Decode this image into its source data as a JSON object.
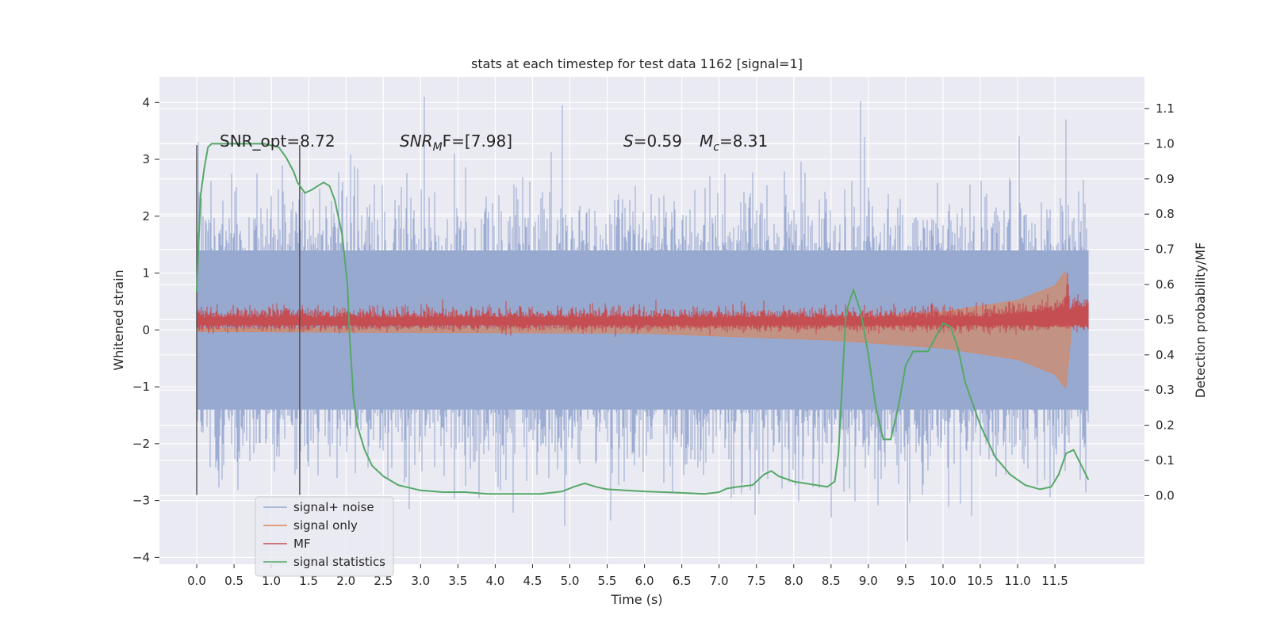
{
  "chart_data": {
    "type": "line",
    "title": "stats at each timestep for test data 1162 [signal=1]",
    "xlabel": "Time (s)",
    "ylabel_left": "Whitened strain",
    "ylabel_right": "Detection probability/MF",
    "xlim": [
      -0.5,
      12.7
    ],
    "ylim_left": [
      -4.12,
      4.45
    ],
    "ylim_right": [
      -0.195,
      1.19
    ],
    "x_ticks": [
      "0.0",
      "0.5",
      "1.0",
      "1.5",
      "2.0",
      "2.5",
      "3.0",
      "3.5",
      "4.0",
      "4.5",
      "5.0",
      "5.5",
      "6.0",
      "6.5",
      "7.0",
      "7.5",
      "8.0",
      "8.5",
      "9.0",
      "9.5",
      "10.0",
      "10.5",
      "11.0",
      "11.5"
    ],
    "y_ticks_left": [
      "4",
      "3",
      "2",
      "1",
      "0",
      "−1",
      "−2",
      "−3",
      "−4"
    ],
    "y_ticks_right": [
      "1.1",
      "1.0",
      "0.9",
      "0.8",
      "0.7",
      "0.6",
      "0.5",
      "0.4",
      "0.3",
      "0.2",
      "0.1",
      "0.0"
    ],
    "grid": true,
    "legend_position": "lower-left",
    "colors": {
      "background": "#eaeaf2",
      "noise": "#98a9d0",
      "signal": "#dd8452",
      "mf": "#c44e52",
      "stat": "#55a868",
      "vline": "#4a4a4a"
    },
    "annotations": {
      "snr_opt": "SNR_opt=8.72",
      "snr_mf_base": "SNR",
      "snr_mf_sub": "M",
      "snr_mf_rest": "F=[7.98]",
      "s_label": "S",
      "s_value": "=0.59",
      "mc_label": "M",
      "mc_sub": "c",
      "mc_value": "=8.31"
    },
    "vertical_lines": [
      0.0,
      1.38
    ],
    "series": [
      {
        "name": "signal+ noise",
        "description": "whitened strain noise, approx. gaussian, dense sampling",
        "x_range": [
          0.0,
          11.95
        ],
        "band_core": [
          -1.4,
          1.4
        ],
        "peak_positive": [
          [
            3.05,
            4.1
          ],
          [
            4.9,
            3.95
          ],
          [
            8.9,
            4.02
          ],
          [
            11.65,
            3.7
          ],
          [
            0.02,
            3.3
          ]
        ],
        "peak_negative": [
          [
            9.52,
            -3.72
          ],
          [
            2.85,
            -3.15
          ],
          [
            5.55,
            -3.35
          ],
          [
            8.5,
            -3.3
          ],
          [
            7.48,
            -3.25
          ]
        ]
      },
      {
        "name": "signal only",
        "description": "chirp envelope growing towards merger",
        "x_range": [
          0.0,
          11.72
        ],
        "amplitude_points": [
          [
            0.0,
            0.03
          ],
          [
            6.0,
            0.06
          ],
          [
            8.5,
            0.18
          ],
          [
            10.0,
            0.32
          ],
          [
            11.0,
            0.52
          ],
          [
            11.5,
            0.78
          ],
          [
            11.65,
            1.05
          ],
          [
            11.72,
            0.0
          ]
        ]
      },
      {
        "name": "MF",
        "description": "matched-filter trace around 0.15 with spike near merger",
        "x_range": [
          0.0,
          11.95
        ],
        "baseline": 0.15,
        "spike": [
          11.67,
          1.0
        ]
      },
      {
        "name": "signal statistics",
        "x": [
          0.0,
          0.05,
          0.1,
          0.15,
          0.2,
          0.3,
          0.5,
          0.7,
          0.9,
          1.1,
          1.2,
          1.3,
          1.35,
          1.45,
          1.55,
          1.62,
          1.7,
          1.78,
          1.85,
          1.95,
          2.02,
          2.05,
          2.1,
          2.15,
          2.25,
          2.35,
          2.5,
          2.7,
          3.0,
          3.3,
          3.6,
          3.9,
          4.2,
          4.6,
          4.9,
          5.05,
          5.2,
          5.35,
          5.5,
          6.0,
          6.5,
          6.8,
          7.0,
          7.1,
          7.25,
          7.45,
          7.6,
          7.7,
          7.8,
          8.0,
          8.3,
          8.45,
          8.55,
          8.6,
          8.7,
          8.8,
          8.9,
          9.0,
          9.1,
          9.2,
          9.3,
          9.4,
          9.5,
          9.6,
          9.8,
          9.9,
          10.0,
          10.1,
          10.2,
          10.3,
          10.5,
          10.7,
          10.9,
          11.1,
          11.3,
          11.45,
          11.55,
          11.65,
          11.75,
          11.95
        ],
        "values": [
          0.58,
          0.85,
          0.93,
          0.99,
          1.0,
          1.0,
          1.0,
          1.0,
          1.0,
          0.99,
          0.96,
          0.92,
          0.89,
          0.86,
          0.87,
          0.88,
          0.89,
          0.88,
          0.84,
          0.74,
          0.6,
          0.45,
          0.28,
          0.2,
          0.13,
          0.085,
          0.055,
          0.03,
          0.015,
          0.01,
          0.01,
          0.005,
          0.005,
          0.005,
          0.012,
          0.025,
          0.035,
          0.025,
          0.018,
          0.012,
          0.008,
          0.005,
          0.01,
          0.02,
          0.025,
          0.03,
          0.06,
          0.07,
          0.055,
          0.04,
          0.03,
          0.025,
          0.04,
          0.12,
          0.52,
          0.585,
          0.52,
          0.4,
          0.25,
          0.16,
          0.16,
          0.25,
          0.37,
          0.41,
          0.41,
          0.45,
          0.49,
          0.48,
          0.42,
          0.32,
          0.2,
          0.11,
          0.06,
          0.03,
          0.018,
          0.025,
          0.06,
          0.12,
          0.13,
          0.045
        ]
      }
    ]
  }
}
